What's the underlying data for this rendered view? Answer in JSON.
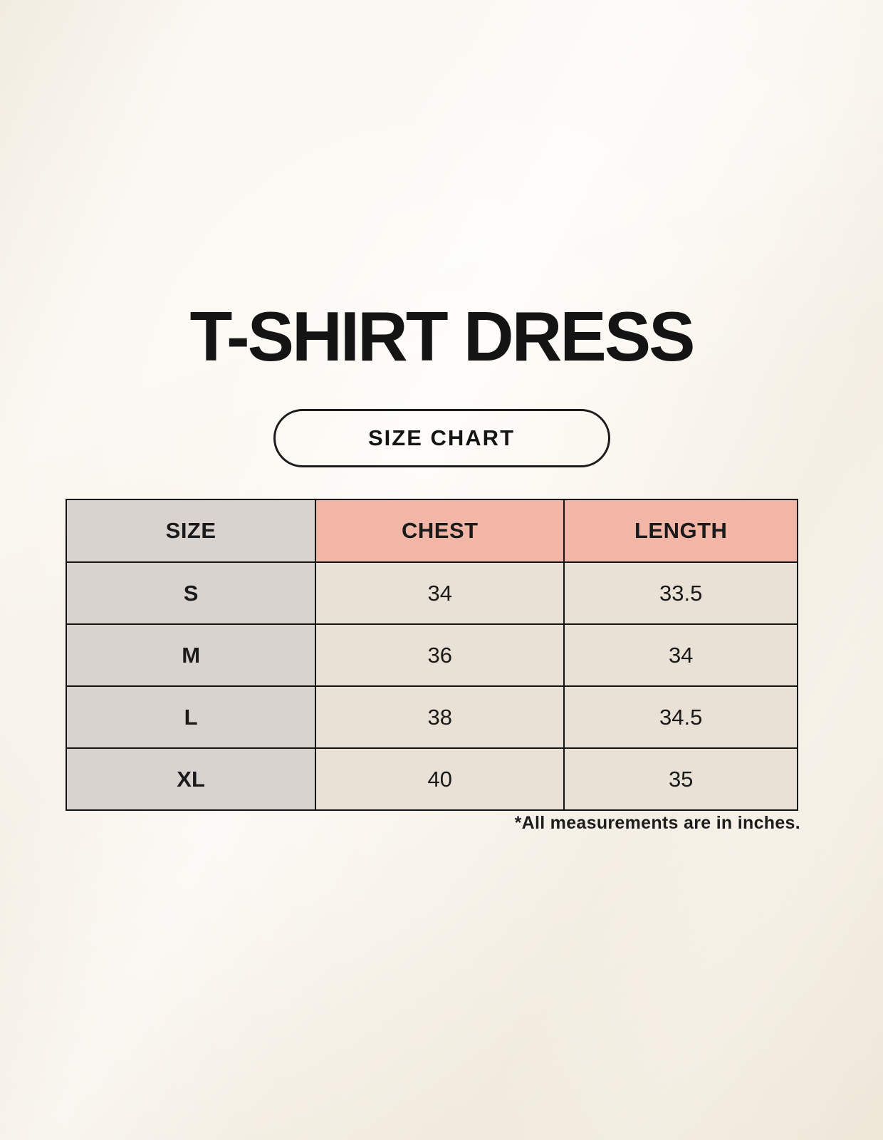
{
  "title": "T-SHIRT DRESS",
  "size_chart_label": "SIZE CHART",
  "footnote": "*All measurements are in inches.",
  "chart_data": {
    "type": "table",
    "title": "T-SHIRT DRESS",
    "columns": [
      "SIZE",
      "CHEST",
      "LENGTH"
    ],
    "rows": [
      [
        "S",
        "34",
        "33.5"
      ],
      [
        "M",
        "36",
        "34"
      ],
      [
        "L",
        "38",
        "34.5"
      ],
      [
        "XL",
        "40",
        "35"
      ]
    ],
    "units": "inches"
  },
  "colors": {
    "page_background": "#f8f4ec",
    "header_pink": "#f1b6a5",
    "size_column_gray": "#d9d3d0",
    "data_cell_cream": "#e9e1d6",
    "border": "#141414",
    "text": "#1a1a1a"
  }
}
